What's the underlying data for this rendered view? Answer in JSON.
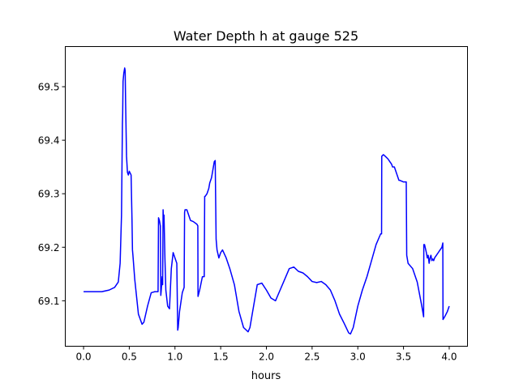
{
  "chart_data": {
    "type": "line",
    "title": "Water Depth h at gauge 525",
    "xlabel": "hours",
    "ylabel": "",
    "xlim": [
      -0.2,
      4.2
    ],
    "ylim": [
      69.015,
      69.575
    ],
    "xticks": [
      0.0,
      0.5,
      1.0,
      1.5,
      2.0,
      2.5,
      3.0,
      3.5,
      4.0
    ],
    "xtick_labels": [
      "0.0",
      "0.5",
      "1.0",
      "1.5",
      "2.0",
      "2.5",
      "3.0",
      "3.5",
      "4.0"
    ],
    "yticks": [
      69.1,
      69.2,
      69.3,
      69.4,
      69.5
    ],
    "ytick_labels": [
      "69.1",
      "69.2",
      "69.3",
      "69.4",
      "69.5"
    ],
    "grid": false,
    "series": [
      {
        "color": "#0000ff",
        "x": [
          0.0,
          0.1,
          0.2,
          0.28,
          0.34,
          0.38,
          0.4,
          0.415,
          0.425,
          0.428,
          0.432,
          0.44,
          0.45,
          0.455,
          0.46,
          0.47,
          0.48,
          0.49,
          0.5,
          0.52,
          0.53,
          0.535,
          0.54,
          0.56,
          0.6,
          0.64,
          0.66,
          0.7,
          0.74,
          0.78,
          0.8,
          0.815,
          0.82,
          0.83,
          0.84,
          0.845,
          0.85,
          0.86,
          0.865,
          0.87,
          0.875,
          0.88,
          0.89,
          0.9,
          0.92,
          0.94,
          0.96,
          0.98,
          1.0,
          1.02,
          1.03,
          1.035,
          1.05,
          1.08,
          1.1,
          1.105,
          1.11,
          1.13,
          1.15,
          1.17,
          1.2,
          1.24,
          1.25,
          1.252,
          1.27,
          1.3,
          1.32,
          1.325,
          1.33,
          1.35,
          1.37,
          1.38,
          1.4,
          1.42,
          1.43,
          1.44,
          1.45,
          1.455,
          1.46,
          1.48,
          1.5,
          1.52,
          1.56,
          1.6,
          1.65,
          1.7,
          1.75,
          1.8,
          1.82,
          1.85,
          1.9,
          1.95,
          2.0,
          2.05,
          2.1,
          2.15,
          2.2,
          2.25,
          2.3,
          2.35,
          2.4,
          2.45,
          2.5,
          2.55,
          2.6,
          2.65,
          2.7,
          2.75,
          2.8,
          2.85,
          2.9,
          2.92,
          2.95,
          3.0,
          3.05,
          3.1,
          3.15,
          3.2,
          3.25,
          3.26,
          3.262,
          3.28,
          3.3,
          3.33,
          3.35,
          3.37,
          3.38,
          3.4,
          3.42,
          3.44,
          3.45,
          3.46,
          3.5,
          3.53,
          3.535,
          3.55,
          3.6,
          3.65,
          3.7,
          3.72,
          3.722,
          3.73,
          3.75,
          3.76,
          3.77,
          3.78,
          3.79,
          3.8,
          3.81,
          3.82,
          3.83,
          3.84,
          3.86,
          3.88,
          3.9,
          3.92,
          3.93,
          3.932,
          3.95,
          3.98,
          4.0
        ],
        "y": [
          69.117,
          69.117,
          69.117,
          69.12,
          69.125,
          69.135,
          69.17,
          69.26,
          69.43,
          69.45,
          69.51,
          69.525,
          69.535,
          69.53,
          69.47,
          69.37,
          69.34,
          69.335,
          69.342,
          69.335,
          69.25,
          69.195,
          69.185,
          69.14,
          69.075,
          69.056,
          69.06,
          69.09,
          69.115,
          69.117,
          69.117,
          69.117,
          69.255,
          69.25,
          69.24,
          69.11,
          69.12,
          69.145,
          69.13,
          69.27,
          69.25,
          69.26,
          69.18,
          69.12,
          69.09,
          69.085,
          69.16,
          69.19,
          69.18,
          69.17,
          69.045,
          69.05,
          69.08,
          69.115,
          69.125,
          69.265,
          69.27,
          69.27,
          69.26,
          69.25,
          69.248,
          69.243,
          69.24,
          69.108,
          69.12,
          69.145,
          69.145,
          69.295,
          69.295,
          69.3,
          69.31,
          69.32,
          69.33,
          69.35,
          69.36,
          69.362,
          69.215,
          69.205,
          69.195,
          69.18,
          69.19,
          69.195,
          69.18,
          69.16,
          69.13,
          69.08,
          69.05,
          69.042,
          69.05,
          69.08,
          69.13,
          69.133,
          69.12,
          69.105,
          69.1,
          69.12,
          69.14,
          69.16,
          69.163,
          69.155,
          69.152,
          69.145,
          69.136,
          69.134,
          69.136,
          69.13,
          69.12,
          69.1,
          69.075,
          69.058,
          69.04,
          69.038,
          69.05,
          69.09,
          69.12,
          69.145,
          69.175,
          69.205,
          69.225,
          69.225,
          69.37,
          69.373,
          69.37,
          69.365,
          69.36,
          69.355,
          69.35,
          69.35,
          69.34,
          69.33,
          69.325,
          69.325,
          69.322,
          69.322,
          69.185,
          69.17,
          69.16,
          69.135,
          69.09,
          69.07,
          69.205,
          69.205,
          69.19,
          69.18,
          69.185,
          69.17,
          69.18,
          69.185,
          69.175,
          69.178,
          69.175,
          69.18,
          69.185,
          69.19,
          69.195,
          69.2,
          69.208,
          69.065,
          69.07,
          69.08,
          69.09
        ]
      }
    ]
  }
}
